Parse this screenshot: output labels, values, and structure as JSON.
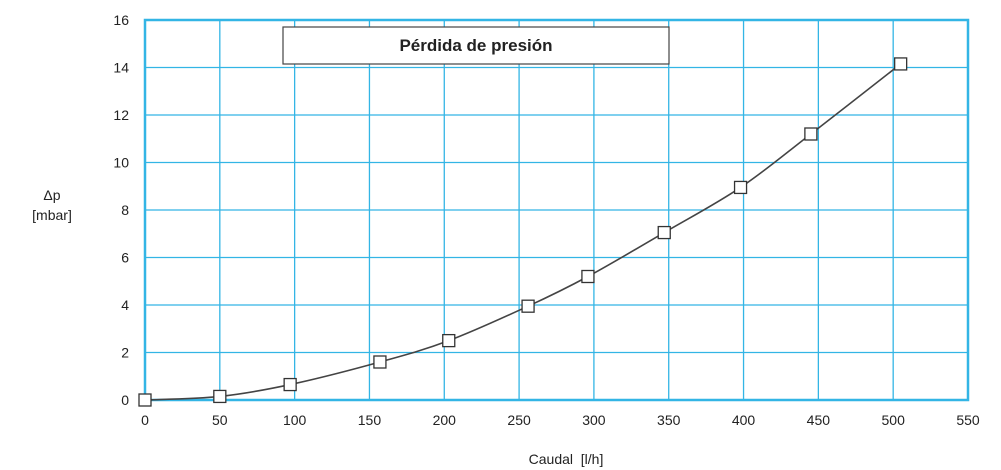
{
  "chart_data": {
    "type": "line",
    "title": "Pérdida de presión",
    "xlabel": "Caudal  [l/h]",
    "ylabel_line1": "Δp",
    "ylabel_line2": "[mbar]",
    "xlim": [
      0,
      550
    ],
    "ylim": [
      0,
      16
    ],
    "x_ticks": [
      0,
      50,
      100,
      150,
      200,
      250,
      300,
      350,
      400,
      450,
      500,
      550
    ],
    "y_ticks": [
      0,
      2,
      4,
      6,
      8,
      10,
      12,
      14,
      16
    ],
    "grid": true,
    "colors": {
      "grid": "#33b5e5",
      "line": "#444444",
      "marker_fill": "#ffffff",
      "marker_stroke": "#333333"
    },
    "series": [
      {
        "marker": "square",
        "x": [
          0,
          50,
          97,
          157,
          203,
          256,
          296,
          347,
          398,
          445,
          505
        ],
        "y": [
          0,
          0.15,
          0.65,
          1.6,
          2.5,
          3.95,
          5.2,
          7.05,
          8.95,
          11.2,
          14.15
        ]
      }
    ]
  }
}
